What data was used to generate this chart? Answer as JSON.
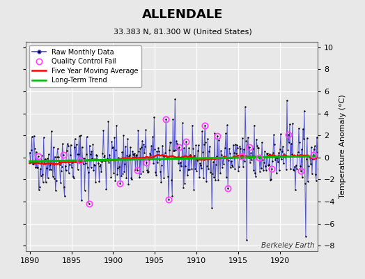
{
  "title": "ALLENDALE",
  "subtitle": "33.383 N, 81.300 W (United States)",
  "ylabel": "Temperature Anomaly (°C)",
  "credit": "Berkeley Earth",
  "xlim": [
    1889.5,
    1924.5
  ],
  "ylim": [
    -8.5,
    10.5
  ],
  "yticks": [
    -8,
    -6,
    -4,
    -2,
    0,
    2,
    4,
    6,
    8,
    10
  ],
  "xticks": [
    1890,
    1895,
    1900,
    1905,
    1910,
    1915,
    1920
  ],
  "fig_bg": "#e8e8e8",
  "plot_bg": "#f0f0f0",
  "grid_color": "#ffffff",
  "raw_line_color": "#4444cc",
  "raw_dot_color": "#000000",
  "moving_avg_color": "#ff0000",
  "trend_color": "#00bb00",
  "qc_fail_color": "#ff44ff",
  "seed": 42,
  "n_years": 35,
  "start_year": 1890
}
